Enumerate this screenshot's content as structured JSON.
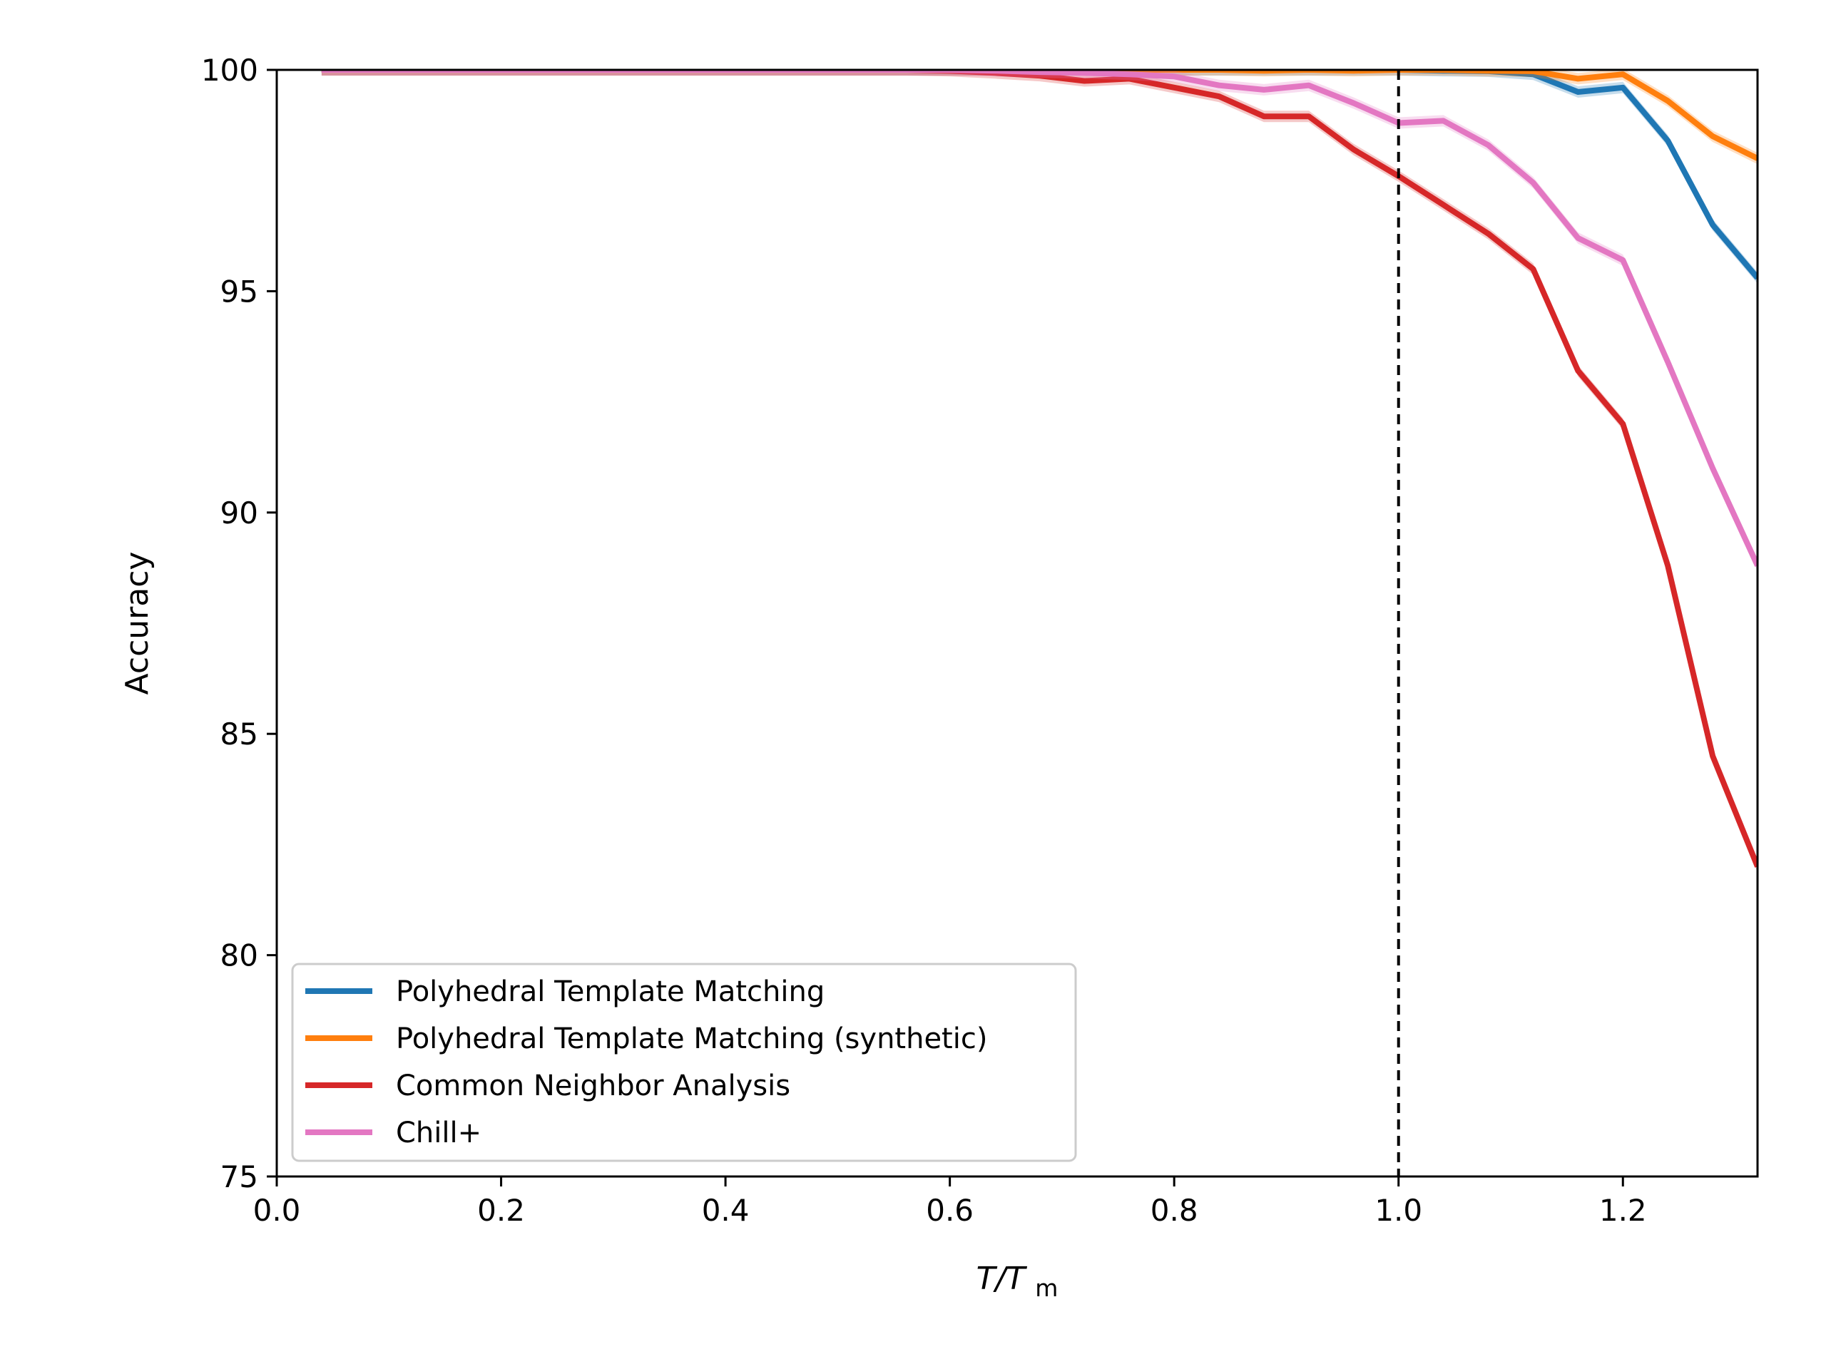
{
  "chart_data": {
    "type": "line",
    "title": "",
    "xlabel": {
      "main": "T/T",
      "sub": "m"
    },
    "ylabel": "Accuracy",
    "xlim": [
      0.0,
      1.32
    ],
    "ylim": [
      75,
      100
    ],
    "xticks": [
      0.0,
      0.2,
      0.4,
      0.6,
      0.8,
      1.0,
      1.2
    ],
    "xtick_labels": [
      "0.0",
      "0.2",
      "0.4",
      "0.6",
      "0.8",
      "1.0",
      "1.2"
    ],
    "yticks": [
      75,
      80,
      85,
      90,
      95,
      100
    ],
    "ytick_labels": [
      "75",
      "80",
      "85",
      "90",
      "95",
      "100"
    ],
    "reference_line": {
      "x": 1.0,
      "style": "dashed",
      "color": "#000000"
    },
    "legend_position": "lower-left",
    "x": [
      0.04,
      0.08,
      0.12,
      0.16,
      0.2,
      0.24,
      0.28,
      0.32,
      0.36,
      0.4,
      0.44,
      0.48,
      0.52,
      0.56,
      0.6,
      0.64,
      0.68,
      0.72,
      0.76,
      0.8,
      0.84,
      0.88,
      0.92,
      0.96,
      1.0,
      1.04,
      1.08,
      1.12,
      1.16,
      1.2,
      1.24,
      1.28,
      1.32
    ],
    "series": [
      {
        "name": "Polyhedral Template Matching",
        "color": "#1f77b4",
        "values": [
          100,
          100,
          100,
          100,
          100,
          100,
          100,
          100,
          100,
          100,
          100,
          100,
          100,
          100,
          100,
          100,
          100,
          100,
          100,
          100,
          100,
          100,
          100,
          100,
          100,
          99.98,
          99.97,
          99.9,
          99.5,
          99.6,
          98.4,
          96.5,
          95.3
        ]
      },
      {
        "name": "Polyhedral Template Matching (synthetic)",
        "color": "#ff7f0e",
        "values": [
          100,
          100,
          100,
          100,
          100,
          100,
          100,
          100,
          100,
          100,
          100,
          100,
          100,
          100,
          100,
          100,
          100,
          100,
          100,
          100,
          100,
          99.98,
          100,
          99.98,
          100,
          100,
          99.98,
          99.97,
          99.8,
          99.9,
          99.3,
          98.5,
          98.0
        ]
      },
      {
        "name": "Common Neighbor Analysis",
        "color": "#d62728",
        "values": [
          100,
          100,
          100,
          100,
          100,
          100,
          100,
          100,
          100,
          100,
          100,
          100,
          100,
          100,
          99.98,
          99.93,
          99.87,
          99.75,
          99.8,
          99.6,
          99.4,
          98.95,
          98.95,
          98.2,
          97.6,
          96.95,
          96.3,
          95.5,
          93.2,
          92.0,
          88.8,
          84.5,
          82.0
        ]
      },
      {
        "name": "Chill+",
        "color": "#e377c2",
        "values": [
          100,
          100,
          100,
          100,
          100,
          100,
          100,
          100,
          100,
          100,
          100,
          100,
          100,
          100,
          100,
          99.98,
          99.95,
          99.93,
          99.9,
          99.85,
          99.65,
          99.55,
          99.65,
          99.25,
          98.8,
          98.85,
          98.3,
          97.45,
          96.2,
          95.7,
          93.4,
          91.0,
          88.8
        ]
      }
    ]
  }
}
